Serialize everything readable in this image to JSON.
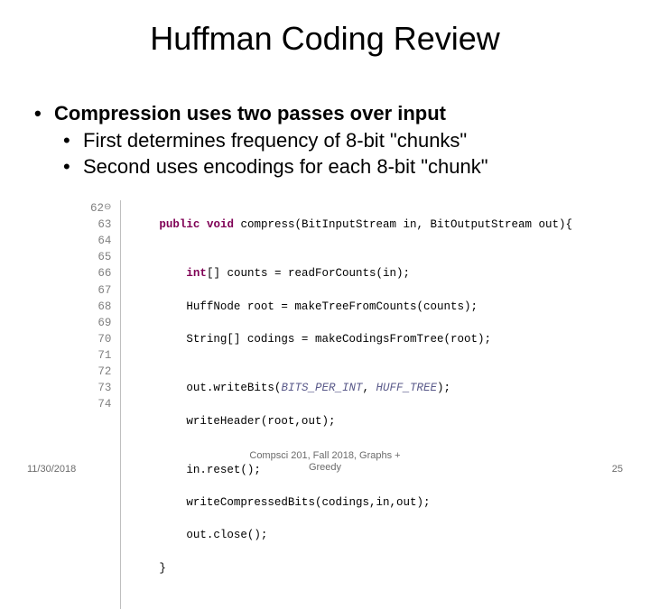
{
  "title": "Huffman Coding Review",
  "bullets": {
    "main": "Compression uses two passes over input",
    "sub1": "First determines frequency of 8-bit \"chunks\"",
    "sub2": "Second uses encodings for each 8-bit \"chunk\""
  },
  "code": {
    "line_start": 62,
    "line_end": 74,
    "gutter_lines": [
      "62",
      "63",
      "64",
      "65",
      "66",
      "67",
      "68",
      "69",
      "70",
      "71",
      "72",
      "73",
      "74"
    ],
    "first_line_marker": "⊖",
    "l62_kw1": "public",
    "l62_kw2": "void",
    "l62_rest": " compress(BitInputStream in, BitOutputStream out){",
    "l63": "",
    "l64_kw": "int",
    "l64_rest": "[] counts = readForCounts(in);",
    "l65": "        HuffNode root = makeTreeFromCounts(counts);",
    "l66": "        String[] codings = makeCodingsFromTree(root);",
    "l67": "",
    "l68_a": "        out.writeBits(",
    "l68_p1": "BITS_PER_INT",
    "l68_b": ", ",
    "l68_p2": "HUFF_TREE",
    "l68_c": ");",
    "l69": "        writeHeader(root,out);",
    "l70": "",
    "l71": "        in.reset();",
    "l72": "        writeCompressedBits(codings,in,out);",
    "l73": "        out.close();",
    "l74": "    }"
  },
  "footer": {
    "date": "11/30/2018",
    "center_line1": "Compsci 201, Fall 2018,  Graphs +",
    "center_line2": "Greedy",
    "page": "25"
  },
  "colors": {
    "text": "#000000",
    "keyword": "#7f0055",
    "param": "#5a5a8a",
    "gutter": "#808080",
    "footer": "#6b6b6b",
    "background": "#ffffff"
  },
  "typography": {
    "title_fontsize": 36,
    "bullet_fontsize": 22,
    "code_fontsize": 12.5,
    "footer_fontsize": 11,
    "body_family": "Arial",
    "code_family": "Courier New"
  }
}
